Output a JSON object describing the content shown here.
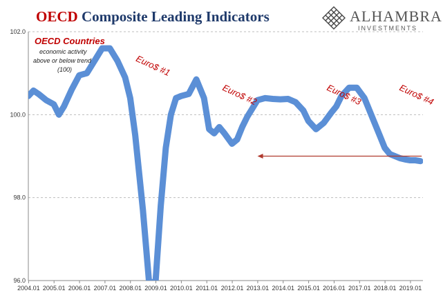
{
  "header": {
    "title_accent": "OECD",
    "title_rest": " Composite Leading Indicators"
  },
  "logo": {
    "name": "ALHAMBRA",
    "sub": "INVESTMENTS",
    "icon": "diamond-lattice-icon"
  },
  "colors": {
    "line": "#5b8fd6",
    "accent": "#c00000",
    "title": "#1f3a6b",
    "grid": "#bdbdbd"
  },
  "chart_data": {
    "type": "line",
    "title": "OECD Composite Leading Indicators",
    "xlabel": "",
    "ylabel": "",
    "ylim": [
      96.0,
      102.0
    ],
    "xlim": [
      2004.0,
      2019.5
    ],
    "grid": true,
    "yticks": [
      96.0,
      98.0,
      100.0,
      102.0
    ],
    "ytick_labels": [
      "96.0",
      "98.0",
      "100.0",
      "102.0"
    ],
    "xtick_labels": [
      "2004.01",
      "2005.01",
      "2006.01",
      "2007.01",
      "2008.01",
      "2009.01",
      "2010.01",
      "2011.01",
      "2012.01",
      "2013.01",
      "2014.01",
      "2015.01",
      "2016.01",
      "2017.01",
      "2018.01",
      "2019.01"
    ],
    "series": [
      {
        "name": "OECD Countries",
        "x": [
          2004.0,
          2004.2,
          2004.4,
          2004.7,
          2005.0,
          2005.2,
          2005.4,
          2005.7,
          2006.0,
          2006.3,
          2006.6,
          2006.9,
          2007.2,
          2007.5,
          2007.8,
          2008.0,
          2008.2,
          2008.5,
          2008.75,
          2009.0,
          2009.2,
          2009.4,
          2009.6,
          2009.8,
          2010.0,
          2010.3,
          2010.6,
          2010.9,
          2011.1,
          2011.3,
          2011.5,
          2011.7,
          2012.0,
          2012.2,
          2012.4,
          2012.6,
          2012.8,
          2013.0,
          2013.3,
          2013.6,
          2013.9,
          2014.2,
          2014.5,
          2014.8,
          2015.0,
          2015.3,
          2015.6,
          2015.9,
          2016.1,
          2016.3,
          2016.6,
          2016.9,
          2017.2,
          2017.5,
          2017.8,
          2018.0,
          2018.2,
          2018.4,
          2018.6,
          2018.8,
          2019.0,
          2019.2,
          2019.4
        ],
        "values": [
          100.45,
          100.58,
          100.5,
          100.35,
          100.25,
          100.0,
          100.2,
          100.6,
          100.95,
          101.0,
          101.3,
          101.6,
          101.6,
          101.3,
          100.9,
          100.4,
          99.5,
          97.7,
          95.9,
          96.0,
          97.8,
          99.2,
          100.0,
          100.4,
          100.45,
          100.5,
          100.85,
          100.4,
          99.65,
          99.55,
          99.7,
          99.55,
          99.3,
          99.4,
          99.7,
          99.95,
          100.15,
          100.35,
          100.4,
          100.38,
          100.37,
          100.38,
          100.3,
          100.1,
          99.85,
          99.65,
          99.8,
          100.05,
          100.2,
          100.45,
          100.65,
          100.65,
          100.4,
          99.95,
          99.5,
          99.2,
          99.05,
          99.0,
          98.95,
          98.92,
          98.9,
          98.9,
          98.88
        ]
      }
    ],
    "annotations": [
      {
        "text": "Euro$ #1",
        "x": 2008.2,
        "y": 101.3
      },
      {
        "text": "Euro$ #2",
        "x": 2011.6,
        "y": 100.6
      },
      {
        "text": "Euro$ #3",
        "x": 2015.7,
        "y": 100.6
      },
      {
        "text": "Euro$ #4",
        "x": 2018.55,
        "y": 100.6
      }
    ],
    "arrow": {
      "from": [
        2019.45,
        99.0
      ],
      "to": [
        2013.0,
        99.0
      ]
    },
    "legend_box": {
      "title": "OECD Countries",
      "lines": [
        "economic activity",
        "above or below trend",
        "(100)"
      ]
    }
  }
}
